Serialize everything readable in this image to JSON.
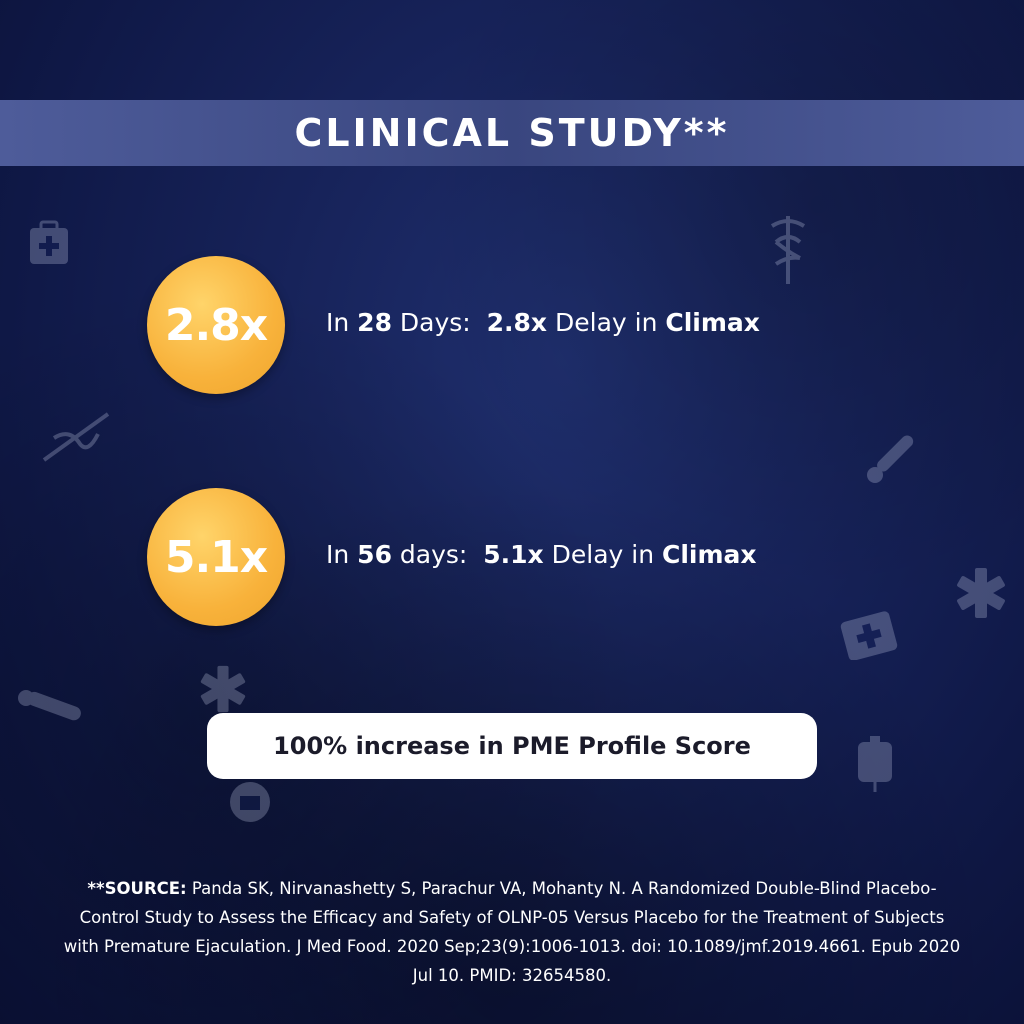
{
  "banner": {
    "title": "CLINICAL STUDY**"
  },
  "stats": [
    {
      "badge": "2.8x",
      "prefix": "In ",
      "days": "28",
      "days_word": " Days:  ",
      "multiplier": "2.8x",
      "middle": " Delay in ",
      "result": "Climax"
    },
    {
      "badge": "5.1x",
      "prefix": "In ",
      "days": "56",
      "days_word": " days:  ",
      "multiplier": "5.1x",
      "middle": " Delay in ",
      "result": "Climax"
    }
  ],
  "highlight": {
    "text": "100% increase in PME Profile Score"
  },
  "source": {
    "label": "**SOURCE:",
    "citation": " Panda SK, Nirvanashetty S, Parachur VA, Mohanty N. A Randomized Double-Blind Placebo-Control Study to Assess the Efficacy and Safety of OLNP-05 Versus Placebo for the Treatment of Subjects with Premature Ejaculation. J Med Food. 2020 Sep;23(9):1006-1013. doi: 10.1089/jmf.2019.4661. Epub 2020 Jul 10. PMID: 32654580."
  },
  "colors": {
    "background": "#17235a",
    "banner": "#45528c",
    "badge": "#f8b23b",
    "pill": "#ffffff"
  },
  "icons": [
    "medical-kit-icon",
    "caduceus-icon",
    "thermometer-icon",
    "asterisk-icon",
    "iv-bag-icon"
  ]
}
